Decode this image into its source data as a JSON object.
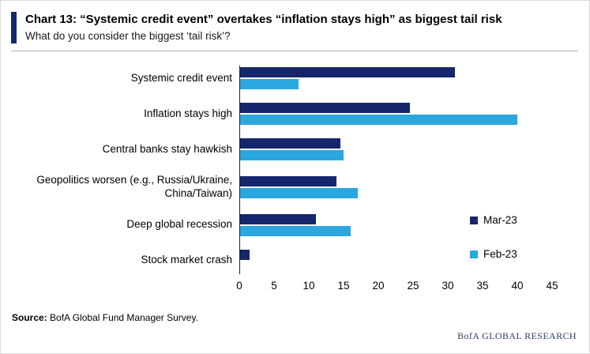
{
  "header": {
    "title": "Chart 13: “Systemic credit event” overtakes “inflation stays high” as biggest tail risk",
    "subtitle": "What do you consider the biggest ‘tail risk’?"
  },
  "chart_data": {
    "type": "bar",
    "orientation": "horizontal",
    "title": "Chart 13: “Systemic credit event” overtakes “inflation stays high” as biggest tail risk",
    "subtitle": "What do you consider the biggest ‘tail risk’?",
    "categories": [
      "Systemic credit event",
      "Inflation stays high",
      "Central banks stay hawkish",
      "Geopolitics worsen (e.g., Russia/Ukraine, China/Taiwan)",
      "Deep global recession",
      "Stock market crash"
    ],
    "series": [
      {
        "name": "Mar-23",
        "color": "#16266c",
        "values": [
          31,
          24.5,
          14.5,
          14,
          11,
          1.5
        ]
      },
      {
        "name": "Feb-23",
        "color": "#2aa7df",
        "values": [
          8.5,
          40,
          15,
          17,
          16,
          0
        ]
      }
    ],
    "xlim": [
      0,
      45
    ],
    "x_ticks": [
      0,
      5,
      10,
      15,
      20,
      25,
      30,
      35,
      40,
      45
    ],
    "grid": false,
    "legend_position": "right"
  },
  "footer": {
    "source_label": "Source:",
    "source_text": "BofA Global Fund Manager Survey.",
    "branding": "BofA GLOBAL RESEARCH"
  },
  "colors": {
    "accent_navy": "#16266c",
    "series_mar": "#16266c",
    "series_feb": "#2aa7df"
  }
}
